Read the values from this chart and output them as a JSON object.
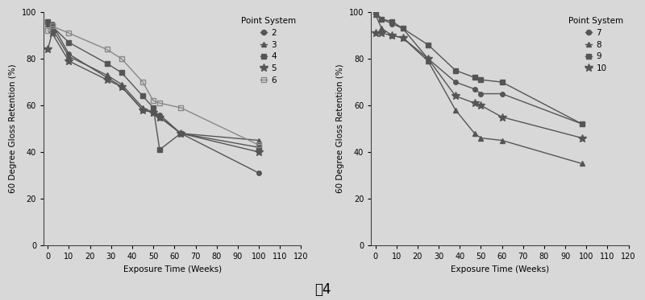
{
  "chart1": {
    "ylabel": "60 Degree Gloss Retention (%)",
    "xlabel": "Exposure Time (Weeks)",
    "legend_title": "Point System",
    "xlim": [
      -2,
      120
    ],
    "ylim": [
      0,
      100
    ],
    "xticks": [
      0,
      10,
      20,
      30,
      40,
      50,
      60,
      70,
      80,
      90,
      100,
      110,
      120
    ],
    "yticks": [
      0,
      20,
      40,
      60,
      80,
      100
    ],
    "series": [
      {
        "label": "2",
        "marker": "o",
        "color": "#555555",
        "fillstyle": "full",
        "x": [
          0,
          2,
          10,
          28,
          35,
          45,
          50,
          53,
          63,
          100
        ],
        "y": [
          96,
          95,
          82,
          72,
          68,
          58,
          57,
          56,
          48,
          31
        ]
      },
      {
        "label": "3",
        "marker": "^",
        "color": "#555555",
        "fillstyle": "full",
        "x": [
          0,
          2,
          10,
          28,
          35,
          45,
          50,
          53,
          63,
          100
        ],
        "y": [
          95,
          93,
          81,
          73,
          69,
          59,
          57,
          55,
          48,
          45
        ]
      },
      {
        "label": "4",
        "marker": "s",
        "color": "#555555",
        "fillstyle": "full",
        "x": [
          0,
          2,
          10,
          28,
          35,
          45,
          50,
          53,
          63,
          100
        ],
        "y": [
          96,
          94,
          87,
          78,
          74,
          64,
          59,
          41,
          48,
          42
        ]
      },
      {
        "label": "5",
        "marker": "*",
        "color": "#555555",
        "fillstyle": "full",
        "x": [
          0,
          2,
          10,
          28,
          35,
          45,
          50,
          53,
          63,
          100
        ],
        "y": [
          84,
          91,
          79,
          71,
          68,
          58,
          57,
          55,
          48,
          40
        ]
      },
      {
        "label": "6",
        "marker": "s",
        "color": "#888888",
        "fillstyle": "none",
        "x": [
          0,
          2,
          10,
          28,
          35,
          45,
          50,
          53,
          63,
          100
        ],
        "y": [
          92,
          94,
          91,
          84,
          80,
          70,
          62,
          61,
          59,
          43
        ]
      }
    ]
  },
  "chart2": {
    "ylabel": "60 Degree Gloss Retention (%)",
    "xlabel": "Exposure Time (Weeks)",
    "legend_title": "Point System",
    "xlim": [
      -2,
      120
    ],
    "ylim": [
      0,
      100
    ],
    "xticks": [
      0,
      10,
      20,
      30,
      40,
      50,
      60,
      70,
      80,
      90,
      100,
      110,
      120
    ],
    "yticks": [
      0,
      20,
      40,
      60,
      80,
      100
    ],
    "series": [
      {
        "label": "7",
        "marker": "o",
        "color": "#555555",
        "fillstyle": "full",
        "x": [
          0,
          3,
          8,
          13,
          25,
          38,
          47,
          50,
          60,
          98
        ],
        "y": [
          100,
          97,
          95,
          93,
          80,
          70,
          67,
          65,
          65,
          52
        ]
      },
      {
        "label": "8",
        "marker": "^",
        "color": "#555555",
        "fillstyle": "full",
        "x": [
          0,
          3,
          8,
          13,
          25,
          38,
          47,
          50,
          60,
          98
        ],
        "y": [
          99,
          93,
          90,
          89,
          79,
          58,
          48,
          46,
          45,
          35
        ]
      },
      {
        "label": "9",
        "marker": "s",
        "color": "#555555",
        "fillstyle": "full",
        "x": [
          0,
          3,
          8,
          13,
          25,
          38,
          47,
          50,
          60,
          98
        ],
        "y": [
          100,
          97,
          96,
          93,
          86,
          75,
          72,
          71,
          70,
          52
        ]
      },
      {
        "label": "10",
        "marker": "*",
        "color": "#555555",
        "fillstyle": "full",
        "x": [
          0,
          3,
          8,
          13,
          25,
          38,
          47,
          50,
          60,
          98
        ],
        "y": [
          91,
          91,
          90,
          89,
          80,
          64,
          61,
          60,
          55,
          46
        ]
      }
    ]
  },
  "figure_label": "图4",
  "bg_color": "#d8d8d8",
  "plot_bg": "#d8d8d8",
  "marker_size": 4,
  "star_size": 7,
  "linewidth": 1.0
}
